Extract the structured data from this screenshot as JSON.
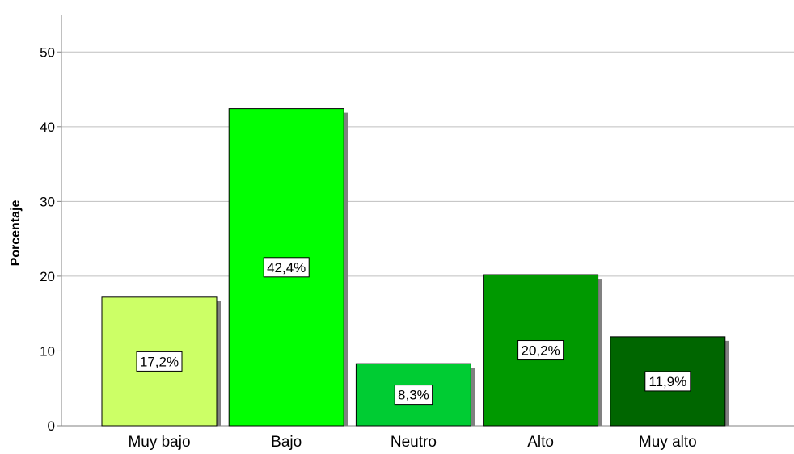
{
  "chart_data": {
    "type": "bar",
    "title": "",
    "xlabel": "",
    "ylabel": "Porcentaje",
    "categories": [
      "Muy bajo",
      "Bajo",
      "Neutro",
      "Alto",
      "Muy alto"
    ],
    "values": [
      17.2,
      42.4,
      8.3,
      20.2,
      11.9
    ],
    "data_labels": [
      "17,2%",
      "42,4%",
      "8,3%",
      "20,2%",
      "11,9%"
    ],
    "ylim": [
      0,
      55
    ],
    "yticks": [
      0,
      10,
      20,
      30,
      40,
      50
    ],
    "ytick_labels": [
      "0",
      "10",
      "20",
      "30",
      "40",
      "50"
    ],
    "grid": "horizontal",
    "legend": "none",
    "bar_colors": [
      "#ccff66",
      "#00ff00",
      "#00cc33",
      "#009900",
      "#006600"
    ],
    "shadow_color": "#808080",
    "gridline_color": "#bfbfbf"
  }
}
